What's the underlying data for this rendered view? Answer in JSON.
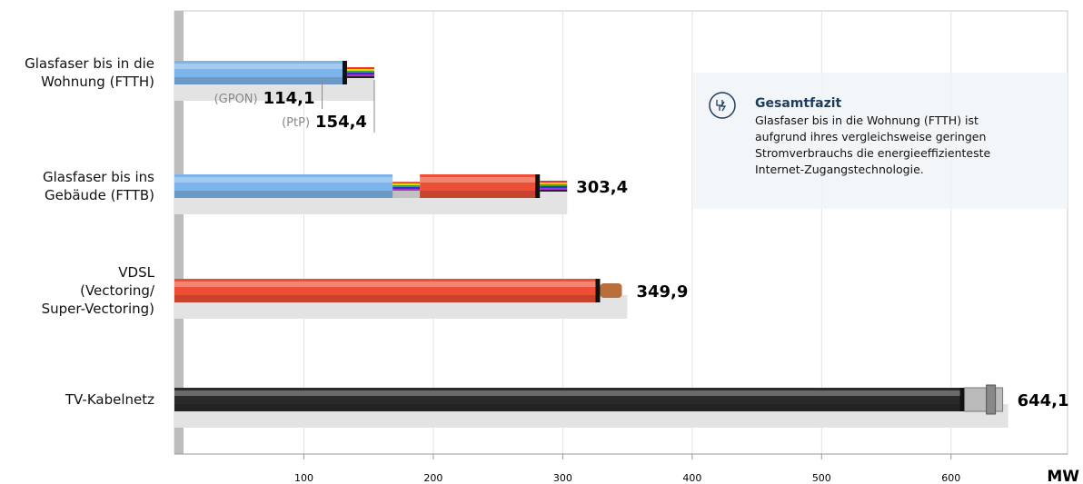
{
  "chart_data": {
    "type": "bar",
    "orientation": "horizontal",
    "categories": [
      "Glasfaser bis in die\nWohnung (FTTH)",
      "Glasfaser bis ins\nGebäude (FTTB)",
      "VDSL\n(Vectoring/\nSuper-Vectoring)",
      "TV-Kabelnetz"
    ],
    "values": [
      154.4,
      303.4,
      349.9,
      644.1
    ],
    "value_labels": [
      "154,4",
      "303,4",
      "349,9",
      "644,1"
    ],
    "value_label_prefix": [
      "(PtP)",
      null,
      null,
      null
    ],
    "annotation": {
      "label": "(GPON)",
      "value": 114.1,
      "value_label": "114,1"
    },
    "colors": [
      "#7db4ea",
      "#7db4ea",
      "#ec4f36",
      "#2a2a2a"
    ],
    "xlim": [
      0,
      690
    ],
    "xticks": [
      100,
      200,
      300,
      400,
      500,
      600
    ],
    "x_label": "MW",
    "grid": true,
    "info_box": {
      "title": "Gesamtfazit",
      "text": "Glasfaser bis in die Wohnung (FTTH) ist\naufgrund ihres vergleichsweise geringen\nStromverbrauchs die energieeffizienteste\nInternet-Zugangstechnologie."
    }
  }
}
